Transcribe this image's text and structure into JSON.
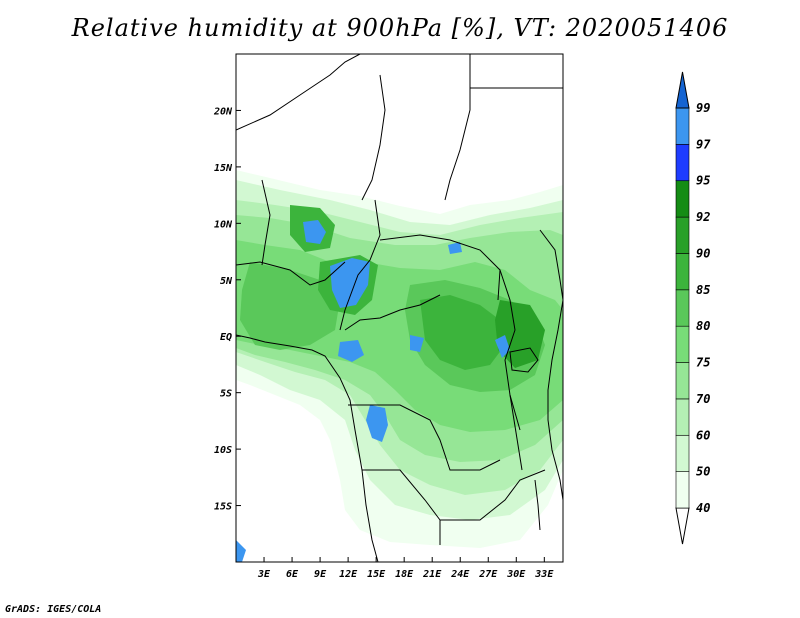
{
  "title": "Relative humidity at 900hPa [%], VT: 2020051406",
  "footer": "GrADS: IGES/COLA",
  "map": {
    "lon_range": [
      0,
      35
    ],
    "lat_range": [
      -20,
      25
    ],
    "lon_ticks": [
      "3E",
      "6E",
      "9E",
      "12E",
      "15E",
      "18E",
      "21E",
      "24E",
      "27E",
      "30E",
      "33E"
    ],
    "lat_ticks": [
      "20N",
      "15N",
      "10N",
      "5N",
      "EQ",
      "5S",
      "10S",
      "15S"
    ]
  },
  "colorbar": {
    "levels": [
      "40",
      "50",
      "60",
      "70",
      "75",
      "80",
      "85",
      "90",
      "92",
      "95",
      "97",
      "99"
    ],
    "colors": [
      "#f0fff0",
      "#d2f8d2",
      "#b4f0b4",
      "#96e696",
      "#78dc78",
      "#5ac85a",
      "#3cb43c",
      "#28a028",
      "#148c14",
      "#1e3cff",
      "#3c96f0",
      "#1464d2"
    ]
  }
}
